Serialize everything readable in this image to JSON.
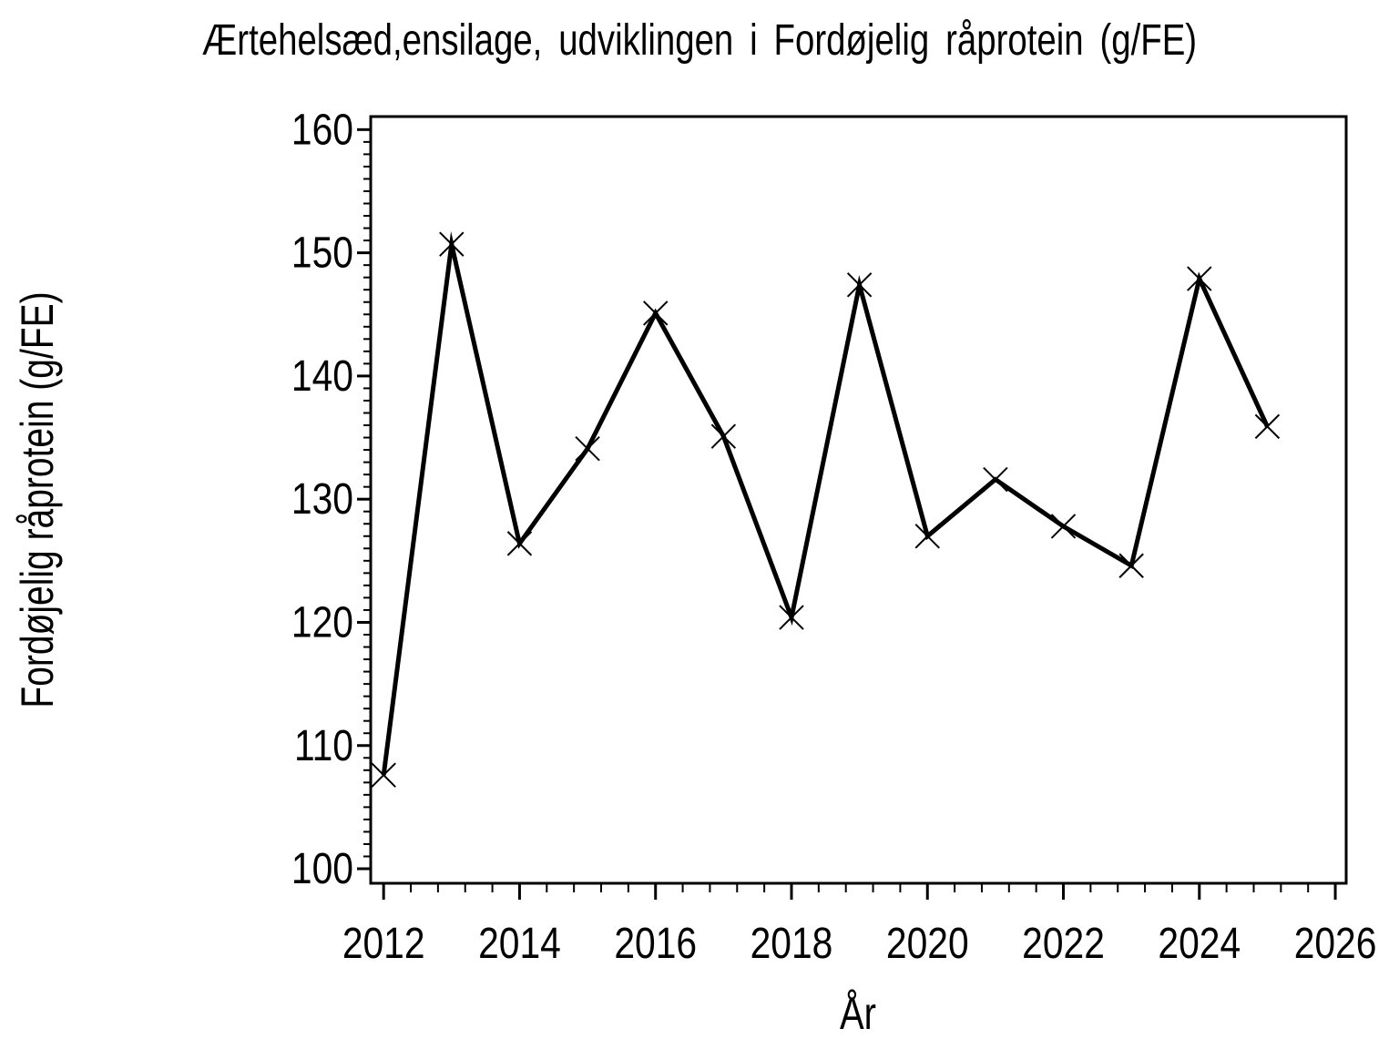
{
  "chart_data": {
    "type": "line",
    "title": "Ærtehelsæd,ensilage, udviklingen i Fordøjelig råprotein (g/FE)",
    "xlabel": "År",
    "ylabel": "Fordøjelig råprotein (g/FE)",
    "x": [
      2012,
      2013,
      2014,
      2015,
      2016,
      2017,
      2018,
      2019,
      2020,
      2021,
      2022,
      2023,
      2024,
      2025
    ],
    "values": [
      107.6,
      150.7,
      126.4,
      134.1,
      145.1,
      135.1,
      120.4,
      147.4,
      127.0,
      131.6,
      127.8,
      124.6,
      147.9,
      135.9
    ],
    "series_name": "Fordøjelig råprotein (g/FE)",
    "marker": "x-cross",
    "line_color": "#000000",
    "background_color": "#ffffff",
    "grid": false,
    "legend": null,
    "x_axis": {
      "min": 2011.81,
      "max": 2026.16,
      "major_ticks": [
        2012,
        2014,
        2016,
        2018,
        2020,
        2022,
        2024,
        2026
      ],
      "minor_step": 0.4,
      "minor_from": 2012,
      "minor_to": 2026
    },
    "y_axis": {
      "min": 98.82,
      "max": 161.06,
      "major_ticks": [
        100,
        110,
        120,
        130,
        140,
        150,
        160
      ],
      "minor_step": 1,
      "minor_from": 100,
      "minor_to": 160
    }
  }
}
